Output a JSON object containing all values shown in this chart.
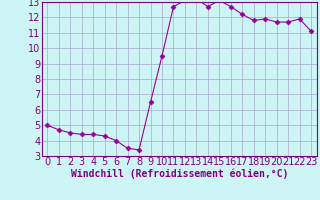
{
  "x": [
    0,
    1,
    2,
    3,
    4,
    5,
    6,
    7,
    8,
    9,
    10,
    11,
    12,
    13,
    14,
    15,
    16,
    17,
    18,
    19,
    20,
    21,
    22,
    23
  ],
  "y": [
    5.0,
    4.7,
    4.5,
    4.4,
    4.4,
    4.3,
    4.0,
    3.5,
    3.4,
    6.5,
    9.5,
    12.7,
    13.1,
    13.2,
    12.7,
    13.1,
    12.7,
    12.2,
    11.8,
    11.9,
    11.7,
    11.7,
    11.9,
    11.1
  ],
  "line_color": "#990099",
  "marker": "D",
  "marker_size": 2.5,
  "bg_color": "#cef5f5",
  "grid_color": "#aaaacc",
  "xlabel": "Windchill (Refroidissement éolien,°C)",
  "xlabel_fontsize": 7,
  "tick_fontsize": 7,
  "xlim": [
    -0.5,
    23.5
  ],
  "ylim": [
    3,
    13
  ],
  "yticks": [
    3,
    4,
    5,
    6,
    7,
    8,
    9,
    10,
    11,
    12,
    13
  ],
  "xticks": [
    0,
    1,
    2,
    3,
    4,
    5,
    6,
    7,
    8,
    9,
    10,
    11,
    12,
    13,
    14,
    15,
    16,
    17,
    18,
    19,
    20,
    21,
    22,
    23
  ],
  "spine_color": "#800080",
  "label_color": "#800080",
  "tick_color": "#800080"
}
